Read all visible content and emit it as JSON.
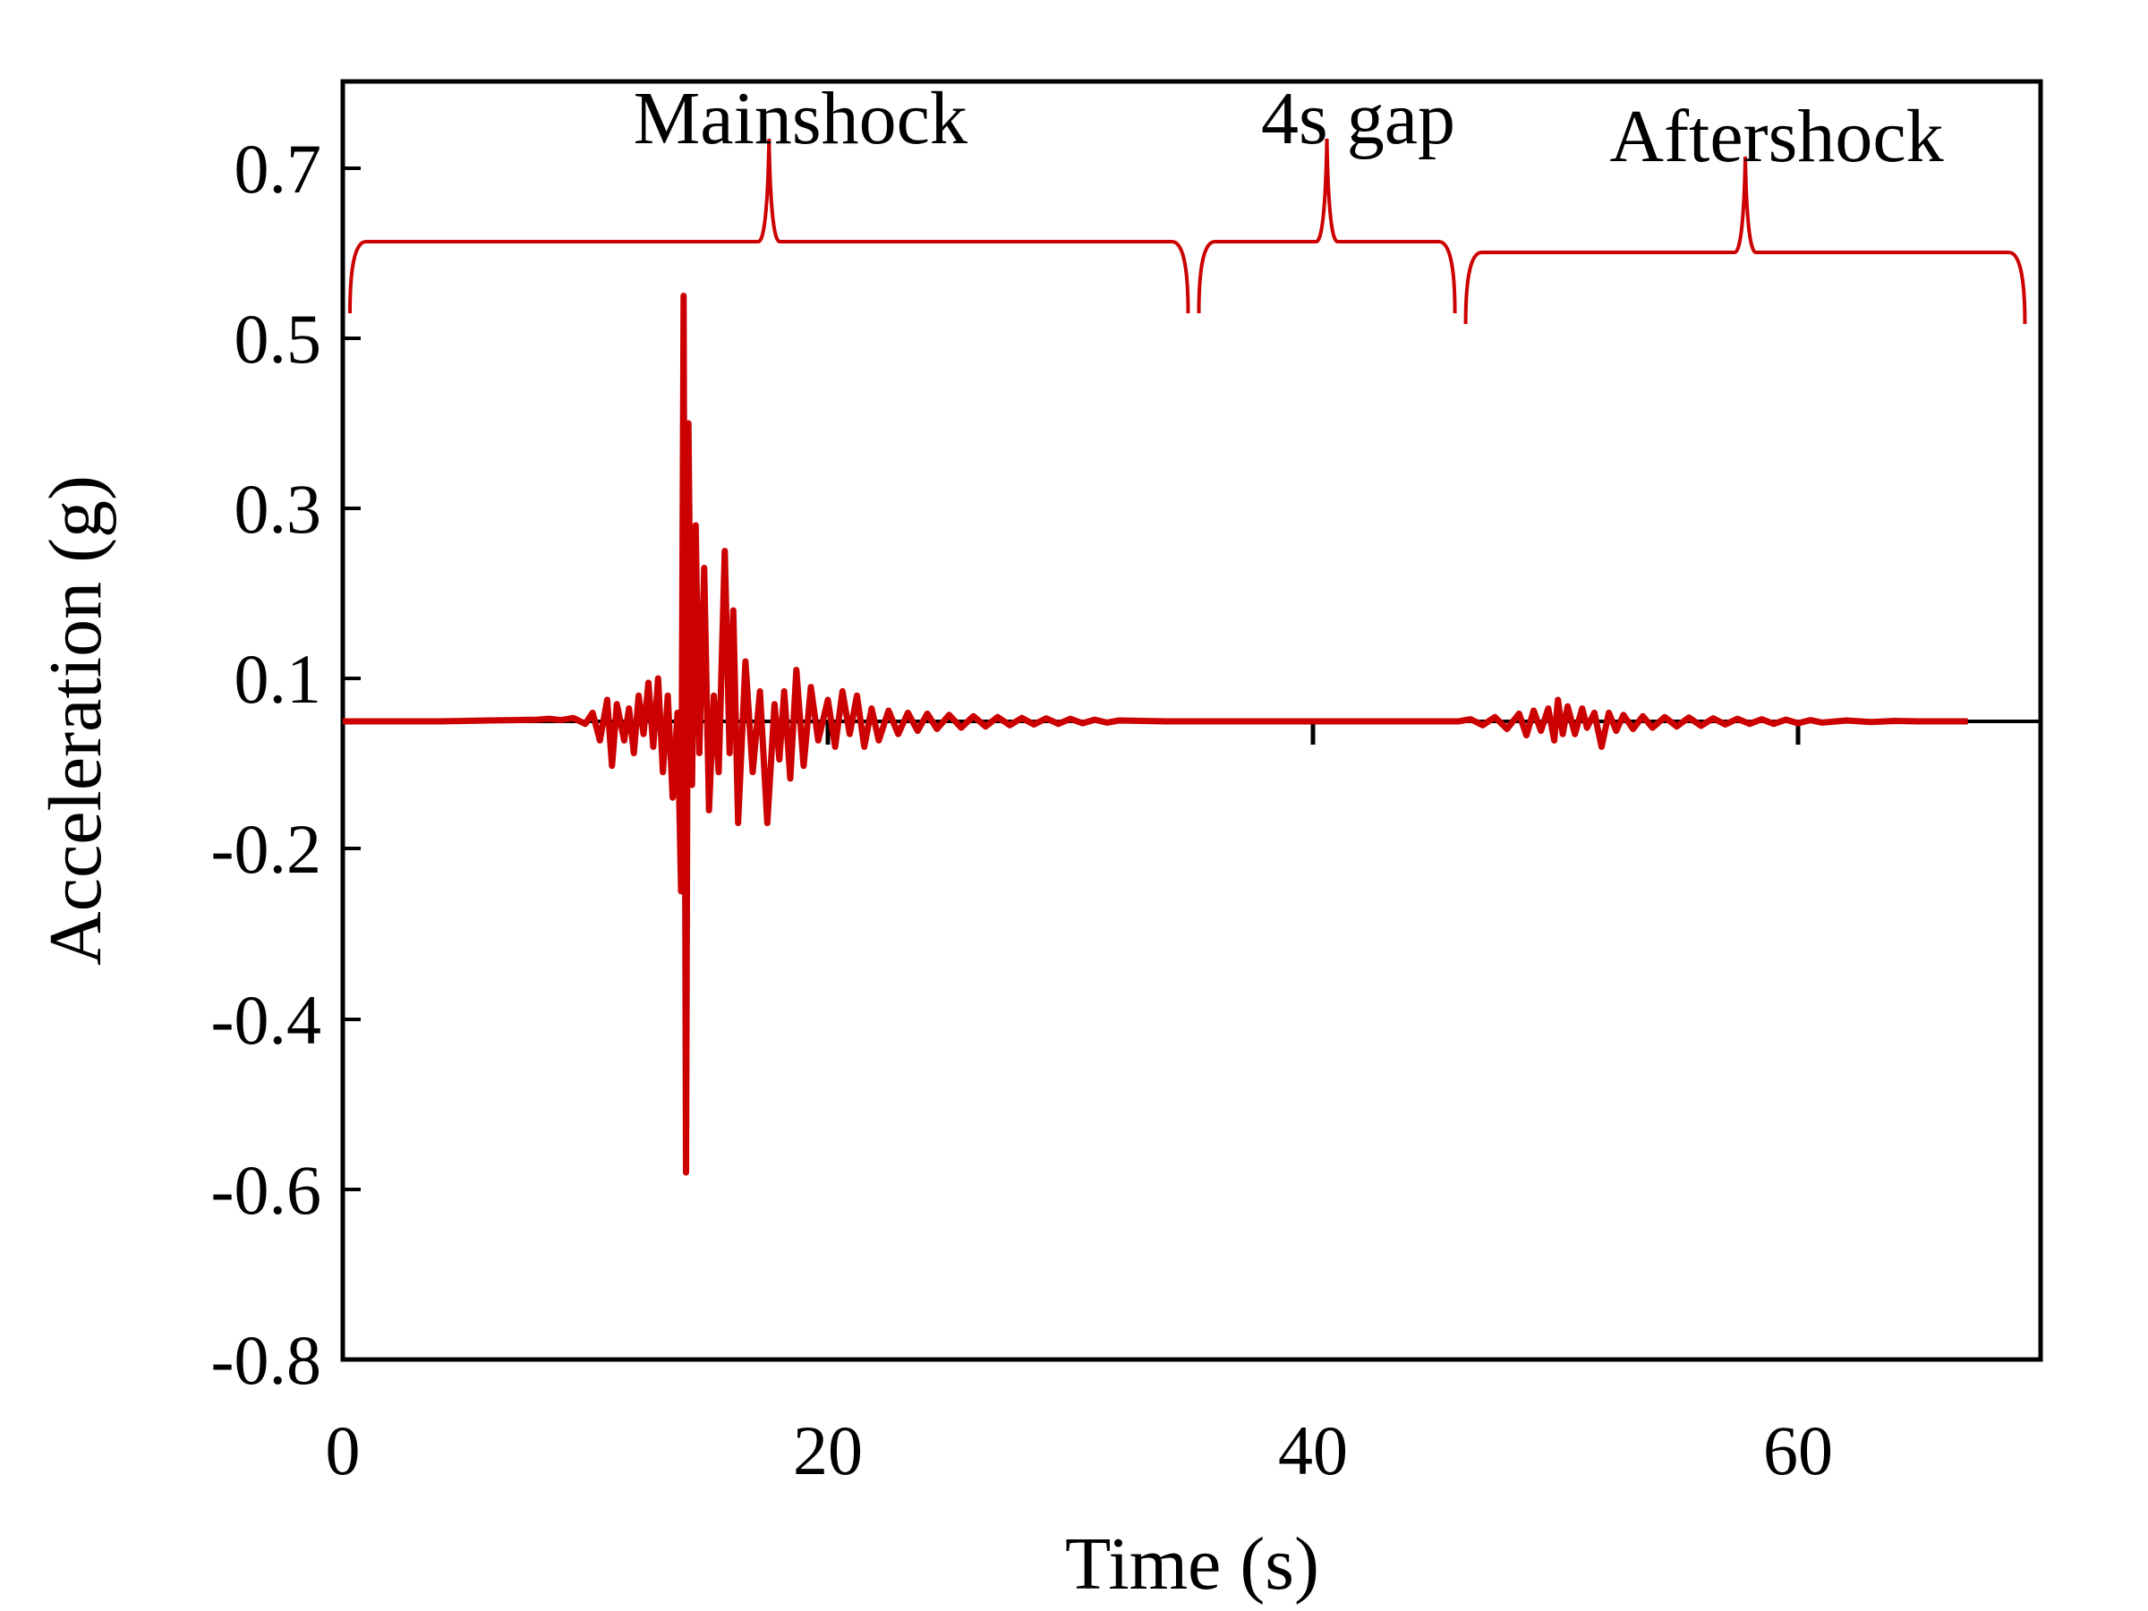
{
  "chart_data": {
    "type": "line",
    "title": "",
    "xlabel": "Time (s)",
    "ylabel": "Acceleration (g)",
    "xlim": [
      0,
      70
    ],
    "ylim": [
      -0.8,
      0.8
    ],
    "x_ticks": [
      {
        "value": 0,
        "label": "0"
      },
      {
        "value": 20,
        "label": "20"
      },
      {
        "value": 40,
        "label": "40"
      },
      {
        "value": 60,
        "label": "60"
      }
    ],
    "y_ticks": [
      {
        "value": 0.7,
        "label": "0.7"
      },
      {
        "value": 0.5,
        "label": "0.5"
      },
      {
        "value": 0.3,
        "label": "0.3"
      },
      {
        "value": 0.1,
        "label": "0.1"
      },
      {
        "value": -0.2,
        "label": "-0.2"
      },
      {
        "value": -0.4,
        "label": "-0.4"
      },
      {
        "value": -0.6,
        "label": "-0.6"
      },
      {
        "value": -0.8,
        "label": "-0.8"
      }
    ],
    "zero_line": true,
    "grid": false,
    "series": [
      {
        "color": "#cc0000",
        "points": [
          [
            0,
            0
          ],
          [
            1,
            0
          ],
          [
            2,
            0
          ],
          [
            3,
            0
          ],
          [
            4,
            0
          ],
          [
            5,
            0.001
          ],
          [
            6,
            0.002
          ],
          [
            7,
            0.003
          ],
          [
            8,
            0.004
          ],
          [
            8.5,
            0.006
          ],
          [
            9,
            0.003
          ],
          [
            9.5,
            0.008
          ],
          [
            10,
            -0.004
          ],
          [
            10.3,
            0.02
          ],
          [
            10.6,
            -0.03
          ],
          [
            10.9,
            0.05
          ],
          [
            11.1,
            -0.07
          ],
          [
            11.3,
            0.04
          ],
          [
            11.6,
            -0.03
          ],
          [
            11.8,
            0.03
          ],
          [
            12.0,
            -0.05
          ],
          [
            12.2,
            0.06
          ],
          [
            12.4,
            -0.02
          ],
          [
            12.6,
            0.09
          ],
          [
            12.8,
            -0.04
          ],
          [
            13.0,
            0.1
          ],
          [
            13.2,
            -0.08
          ],
          [
            13.4,
            0.06
          ],
          [
            13.6,
            -0.12
          ],
          [
            13.8,
            0.02
          ],
          [
            13.95,
            -0.25
          ],
          [
            14.05,
            0.55
          ],
          [
            14.15,
            -0.58
          ],
          [
            14.25,
            0.4
          ],
          [
            14.4,
            -0.1
          ],
          [
            14.55,
            0.28
          ],
          [
            14.7,
            -0.05
          ],
          [
            14.9,
            0.23
          ],
          [
            15.1,
            -0.14
          ],
          [
            15.3,
            0.06
          ],
          [
            15.5,
            -0.08
          ],
          [
            15.75,
            0.25
          ],
          [
            15.95,
            -0.05
          ],
          [
            16.1,
            0.18
          ],
          [
            16.3,
            -0.16
          ],
          [
            16.6,
            0.12
          ],
          [
            16.9,
            -0.08
          ],
          [
            17.2,
            0.07
          ],
          [
            17.5,
            -0.16
          ],
          [
            17.8,
            0.04
          ],
          [
            18.0,
            -0.06
          ],
          [
            18.2,
            0.07
          ],
          [
            18.45,
            -0.09
          ],
          [
            18.7,
            0.11
          ],
          [
            19.0,
            -0.07
          ],
          [
            19.3,
            0.08
          ],
          [
            19.6,
            -0.03
          ],
          [
            20.0,
            0.05
          ],
          [
            20.3,
            -0.04
          ],
          [
            20.6,
            0.07
          ],
          [
            20.9,
            -0.02
          ],
          [
            21.2,
            0.06
          ],
          [
            21.5,
            -0.04
          ],
          [
            21.8,
            0.03
          ],
          [
            22.1,
            -0.03
          ],
          [
            22.5,
            0.025
          ],
          [
            22.9,
            -0.02
          ],
          [
            23.3,
            0.02
          ],
          [
            23.7,
            -0.015
          ],
          [
            24.1,
            0.018
          ],
          [
            24.5,
            -0.012
          ],
          [
            25.0,
            0.015
          ],
          [
            25.5,
            -0.01
          ],
          [
            26.0,
            0.012
          ],
          [
            26.5,
            -0.008
          ],
          [
            27.0,
            0.01
          ],
          [
            27.5,
            -0.006
          ],
          [
            28.0,
            0.008
          ],
          [
            28.5,
            -0.005
          ],
          [
            29.0,
            0.007
          ],
          [
            29.5,
            -0.004
          ],
          [
            30.0,
            0.006
          ],
          [
            30.5,
            -0.003
          ],
          [
            31.0,
            0.004
          ],
          [
            31.5,
            -0.002
          ],
          [
            32.0,
            0.002
          ],
          [
            33,
            0.001
          ],
          [
            34,
            0
          ],
          [
            35,
            0
          ],
          [
            36,
            0
          ],
          [
            38,
            0
          ],
          [
            40,
            0
          ],
          [
            42,
            0
          ],
          [
            44,
            0
          ],
          [
            46,
            0
          ],
          [
            46.5,
            0.005
          ],
          [
            47,
            -0.006
          ],
          [
            47.5,
            0.01
          ],
          [
            48.0,
            -0.012
          ],
          [
            48.5,
            0.018
          ],
          [
            48.8,
            -0.022
          ],
          [
            49.1,
            0.025
          ],
          [
            49.4,
            -0.015
          ],
          [
            49.7,
            0.03
          ],
          [
            49.95,
            -0.03
          ],
          [
            50.1,
            0.05
          ],
          [
            50.3,
            -0.02
          ],
          [
            50.5,
            0.035
          ],
          [
            50.8,
            -0.02
          ],
          [
            51.1,
            0.03
          ],
          [
            51.3,
            -0.01
          ],
          [
            51.6,
            0.02
          ],
          [
            51.9,
            -0.04
          ],
          [
            52.2,
            0.02
          ],
          [
            52.5,
            -0.015
          ],
          [
            52.8,
            0.015
          ],
          [
            53.2,
            -0.012
          ],
          [
            53.6,
            0.012
          ],
          [
            54.0,
            -0.01
          ],
          [
            54.5,
            0.01
          ],
          [
            55.0,
            -0.008
          ],
          [
            55.5,
            0.009
          ],
          [
            56.0,
            -0.007
          ],
          [
            56.5,
            0.007
          ],
          [
            57.0,
            -0.005
          ],
          [
            57.5,
            0.006
          ],
          [
            58.0,
            -0.004
          ],
          [
            58.5,
            0.005
          ],
          [
            59.0,
            -0.004
          ],
          [
            59.5,
            0.004
          ],
          [
            60.0,
            -0.003
          ],
          [
            60.5,
            0.003
          ],
          [
            61.0,
            -0.002
          ],
          [
            62,
            0.002
          ],
          [
            63,
            -0.001
          ],
          [
            64,
            0.001
          ],
          [
            65,
            0
          ],
          [
            66,
            0
          ],
          [
            67,
            0
          ]
        ]
      }
    ],
    "annotations": [
      {
        "label": "Mainshock",
        "x_start": 0,
        "x_end": 35
      },
      {
        "label": "4s gap",
        "x_start": 35,
        "x_end": 46
      },
      {
        "label": "Aftershock",
        "x_start": 46,
        "x_end": 69.5
      }
    ]
  }
}
